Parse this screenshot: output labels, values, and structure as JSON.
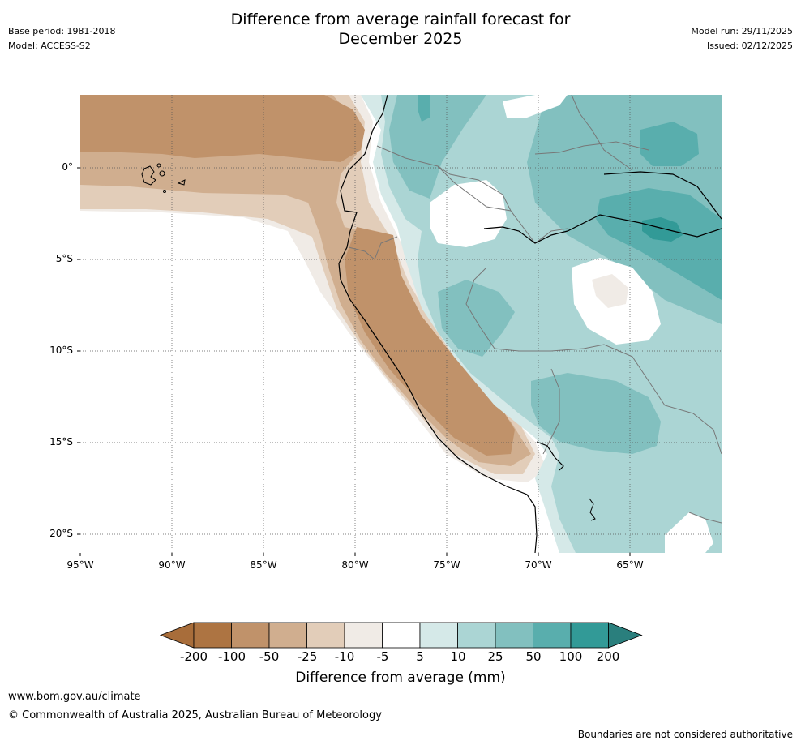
{
  "header": {
    "title_line1": "Difference from average rainfall forecast for",
    "title_line2": "December 2025",
    "base_period": "Base period: 1981-2018",
    "model": "Model: ACCESS-S2",
    "model_run": "Model run: 29/11/2025",
    "issued": "Issued: 02/12/2025"
  },
  "map": {
    "lat_ticks": [
      "0°",
      "5°S",
      "10°S",
      "15°S",
      "20°S"
    ],
    "lon_ticks": [
      "95°W",
      "90°W",
      "85°W",
      "80°W",
      "75°W",
      "70°W",
      "65°W"
    ],
    "lat_values": [
      0,
      -5,
      -10,
      -15,
      -20
    ],
    "lon_values": [
      -95,
      -90,
      -85,
      -80,
      -75,
      -70,
      -65
    ],
    "extent": {
      "lon_min": -95,
      "lon_max": -60,
      "lat_min": -21,
      "lat_max": 4
    }
  },
  "legend": {
    "title": "Difference from average (mm)",
    "labels": [
      "-200",
      "-100",
      "-50",
      "-25",
      "-10",
      "-5",
      "5",
      "10",
      "25",
      "50",
      "100",
      "200"
    ],
    "colors": [
      "#a86d3a",
      "#ad7442",
      "#c0926a",
      "#d0ae8f",
      "#e2cdb9",
      "#f0ebe6",
      "#ffffff",
      "#d5e9e8",
      "#abd5d4",
      "#82c0bf",
      "#59aead",
      "#329a97",
      "#2a7f7d"
    ]
  },
  "footer": {
    "url": "www.bom.gov.au/climate",
    "copyright": "© Commonwealth of Australia 2025, Australian Bureau of Meteorology",
    "disclaimer": "Boundaries are not considered authoritative"
  }
}
